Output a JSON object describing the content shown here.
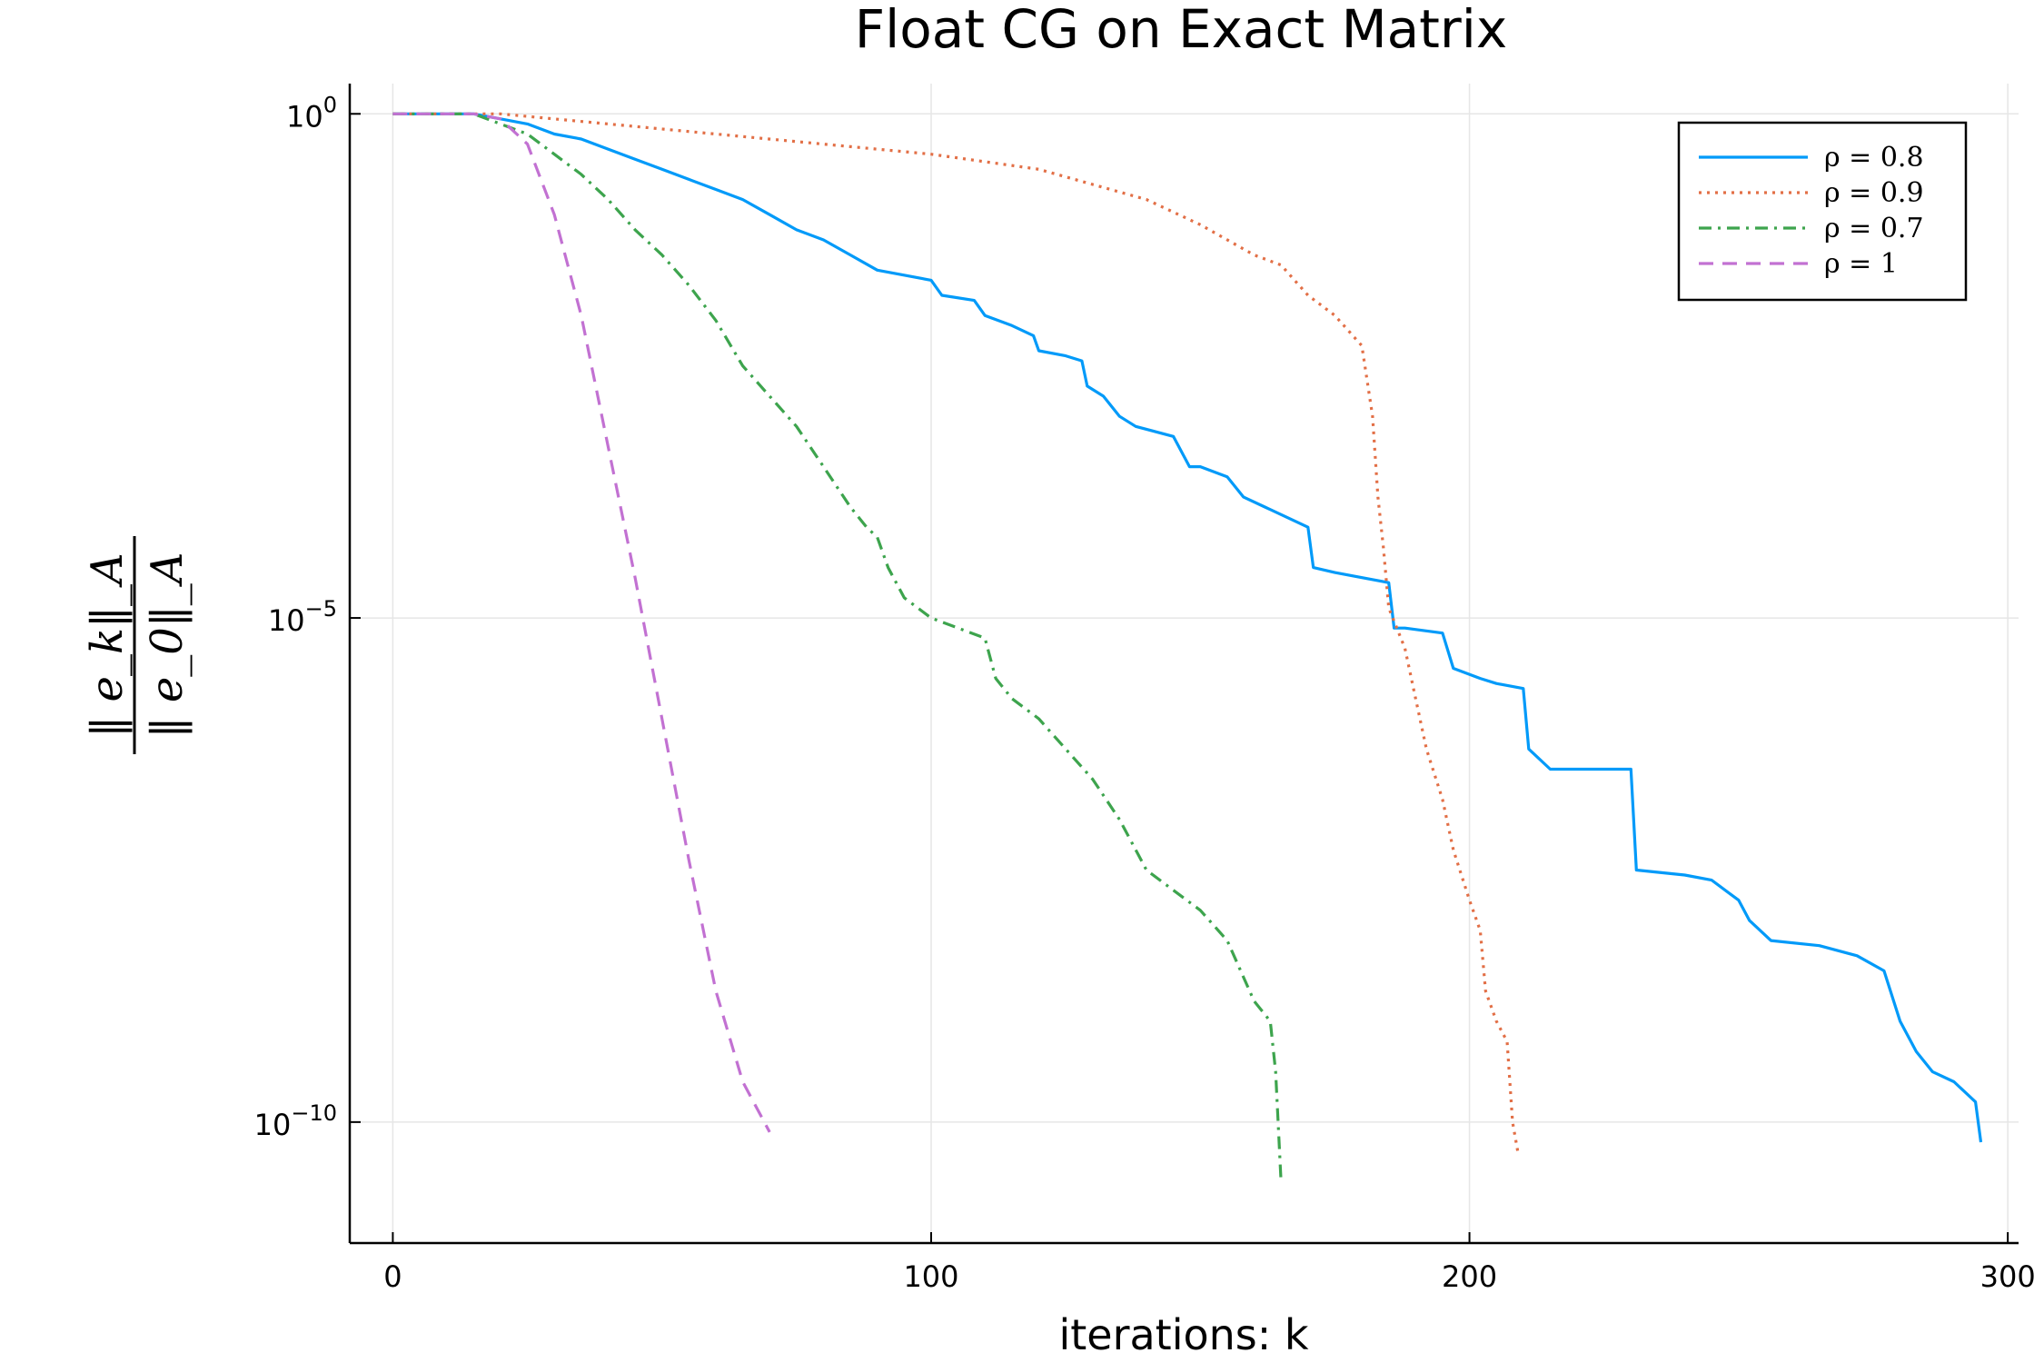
{
  "chart_data": {
    "type": "line",
    "title": "Float CG on Exact Matrix",
    "xlabel": "iterations: k",
    "ylabel": {
      "numerator": "‖ e_k‖_A",
      "denominator": "‖ e_0‖_A"
    },
    "yscale": "log",
    "xlim": [
      -8,
      302
    ],
    "ylim_log10": [
      -11.2,
      0.3
    ],
    "xticks": [
      0,
      100,
      200,
      300
    ],
    "xtick_labels": [
      "0",
      "100",
      "200",
      "300"
    ],
    "yticks_log10": [
      0,
      -5,
      -10
    ],
    "ytick_labels": [
      {
        "base": "10",
        "exp": "0"
      },
      {
        "base": "10",
        "exp": "−5"
      },
      {
        "base": "10",
        "exp": "−10"
      }
    ],
    "grid": true,
    "legend_position": "top-right",
    "series": [
      {
        "name": "ρ = 0.8",
        "color": "#009af9",
        "style": "solid",
        "points_log10": [
          [
            0,
            0
          ],
          [
            15,
            0
          ],
          [
            20,
            -0.05
          ],
          [
            25,
            -0.1
          ],
          [
            30,
            -0.2
          ],
          [
            35,
            -0.25
          ],
          [
            40,
            -0.35
          ],
          [
            45,
            -0.45
          ],
          [
            50,
            -0.55
          ],
          [
            55,
            -0.65
          ],
          [
            60,
            -0.75
          ],
          [
            65,
            -0.85
          ],
          [
            70,
            -1.0
          ],
          [
            75,
            -1.15
          ],
          [
            80,
            -1.25
          ],
          [
            85,
            -1.4
          ],
          [
            90,
            -1.55
          ],
          [
            100,
            -1.65
          ],
          [
            102,
            -1.8
          ],
          [
            108,
            -1.85
          ],
          [
            110,
            -2.0
          ],
          [
            115,
            -2.1
          ],
          [
            119,
            -2.2
          ],
          [
            120,
            -2.35
          ],
          [
            125,
            -2.4
          ],
          [
            128,
            -2.45
          ],
          [
            129,
            -2.7
          ],
          [
            132,
            -2.8
          ],
          [
            135,
            -3.0
          ],
          [
            138,
            -3.1
          ],
          [
            145,
            -3.2
          ],
          [
            148,
            -3.5
          ],
          [
            150,
            -3.5
          ],
          [
            155,
            -3.6
          ],
          [
            158,
            -3.8
          ],
          [
            162,
            -3.9
          ],
          [
            170,
            -4.1
          ],
          [
            171,
            -4.5
          ],
          [
            175,
            -4.55
          ],
          [
            185,
            -4.65
          ],
          [
            186,
            -5.1
          ],
          [
            188,
            -5.1
          ],
          [
            195,
            -5.15
          ],
          [
            197,
            -5.5
          ],
          [
            202,
            -5.6
          ],
          [
            205,
            -5.65
          ],
          [
            210,
            -5.7
          ],
          [
            211,
            -6.3
          ],
          [
            215,
            -6.5
          ],
          [
            222,
            -6.5
          ],
          [
            230,
            -6.5
          ],
          [
            231,
            -7.5
          ],
          [
            240,
            -7.55
          ],
          [
            245,
            -7.6
          ],
          [
            250,
            -7.8
          ],
          [
            252,
            -8.0
          ],
          [
            256,
            -8.2
          ],
          [
            265,
            -8.25
          ],
          [
            272,
            -8.35
          ],
          [
            277,
            -8.5
          ],
          [
            280,
            -9.0
          ],
          [
            283,
            -9.3
          ],
          [
            286,
            -9.5
          ],
          [
            290,
            -9.6
          ],
          [
            294,
            -9.8
          ],
          [
            295,
            -10.2
          ]
        ]
      },
      {
        "name": "ρ = 0.9",
        "color": "#e26f46",
        "style": "dotted",
        "points_log10": [
          [
            0,
            0
          ],
          [
            20,
            0
          ],
          [
            40,
            -0.1
          ],
          [
            60,
            -0.2
          ],
          [
            80,
            -0.3
          ],
          [
            100,
            -0.4
          ],
          [
            120,
            -0.55
          ],
          [
            130,
            -0.7
          ],
          [
            140,
            -0.85
          ],
          [
            150,
            -1.1
          ],
          [
            160,
            -1.4
          ],
          [
            165,
            -1.5
          ],
          [
            170,
            -1.8
          ],
          [
            175,
            -2.0
          ],
          [
            180,
            -2.3
          ],
          [
            182,
            -3.0
          ],
          [
            183,
            -3.8
          ],
          [
            184,
            -4.3
          ],
          [
            185,
            -4.9
          ],
          [
            188,
            -5.3
          ],
          [
            190,
            -5.8
          ],
          [
            192,
            -6.3
          ],
          [
            195,
            -6.8
          ],
          [
            197,
            -7.3
          ],
          [
            200,
            -7.8
          ],
          [
            202,
            -8.1
          ],
          [
            203,
            -8.7
          ],
          [
            205,
            -9.0
          ],
          [
            207,
            -9.2
          ],
          [
            208,
            -10.0
          ],
          [
            209,
            -10.3
          ]
        ]
      },
      {
        "name": "ρ = 0.7",
        "color": "#3da44d",
        "style": "dashdot",
        "points_log10": [
          [
            0,
            0
          ],
          [
            15,
            0
          ],
          [
            20,
            -0.1
          ],
          [
            25,
            -0.2
          ],
          [
            30,
            -0.4
          ],
          [
            35,
            -0.6
          ],
          [
            40,
            -0.85
          ],
          [
            45,
            -1.15
          ],
          [
            50,
            -1.4
          ],
          [
            55,
            -1.7
          ],
          [
            60,
            -2.05
          ],
          [
            65,
            -2.5
          ],
          [
            70,
            -2.8
          ],
          [
            75,
            -3.1
          ],
          [
            80,
            -3.5
          ],
          [
            85,
            -3.9
          ],
          [
            88,
            -4.1
          ],
          [
            90,
            -4.2
          ],
          [
            92,
            -4.5
          ],
          [
            95,
            -4.8
          ],
          [
            100,
            -5.0
          ],
          [
            105,
            -5.1
          ],
          [
            110,
            -5.2
          ],
          [
            112,
            -5.6
          ],
          [
            115,
            -5.8
          ],
          [
            120,
            -6.0
          ],
          [
            125,
            -6.3
          ],
          [
            130,
            -6.6
          ],
          [
            135,
            -7.0
          ],
          [
            140,
            -7.5
          ],
          [
            145,
            -7.7
          ],
          [
            150,
            -7.9
          ],
          [
            155,
            -8.2
          ],
          [
            160,
            -8.8
          ],
          [
            163,
            -9.0
          ],
          [
            164,
            -9.5
          ],
          [
            165,
            -10.6
          ]
        ]
      },
      {
        "name": "ρ = 1",
        "color": "#c271d2",
        "style": "dashed",
        "points_log10": [
          [
            0,
            0
          ],
          [
            15,
            0
          ],
          [
            20,
            -0.05
          ],
          [
            25,
            -0.3
          ],
          [
            30,
            -1.0
          ],
          [
            35,
            -2.0
          ],
          [
            40,
            -3.3
          ],
          [
            45,
            -4.6
          ],
          [
            50,
            -6.0
          ],
          [
            55,
            -7.4
          ],
          [
            60,
            -8.7
          ],
          [
            65,
            -9.6
          ],
          [
            70,
            -10.1
          ]
        ]
      }
    ]
  }
}
